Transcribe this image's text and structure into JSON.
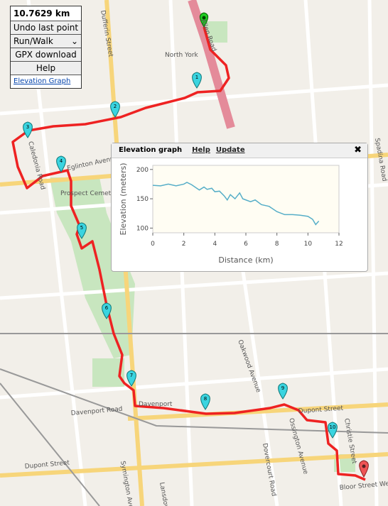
{
  "panel": {
    "distance": "10.7629 km",
    "undo": "Undo last point",
    "mode": "Run/Walk",
    "gpx": "GPX download",
    "help": "Help",
    "elevation_link": "Elevation Graph"
  },
  "streets": [
    "North York",
    "Allen Road",
    "Dufferin Street",
    "Caledonia Road",
    "Eglinton Avenue West",
    "Prospect Cemetery",
    "Oakwood Avenue",
    "Davenport",
    "Davenport Road",
    "Dupont Street",
    "Ossington Avenue",
    "Dovercourt Road",
    "Christie Street",
    "Bloor Street West",
    "Symington Avenue",
    "Lansdowne",
    "Spadina Road",
    "Dupont Street"
  ],
  "markers": [
    "1",
    "2",
    "3",
    "4",
    "5",
    "6",
    "7",
    "8",
    "9",
    "10"
  ],
  "popup": {
    "title": "Elevation graph",
    "help": "Help",
    "update": "Update",
    "close": "✖"
  },
  "chart_data": {
    "type": "line",
    "x_label": "Distance (km)",
    "y_label": "Elevation (meters)",
    "color": "#56aec8",
    "x": [
      0,
      0.5,
      1,
      1.5,
      2,
      2.2,
      2.5,
      3,
      3.3,
      3.5,
      3.8,
      4,
      4.3,
      4.6,
      4.8,
      5,
      5.3,
      5.6,
      5.8,
      6,
      6.3,
      6.6,
      7,
      7.5,
      8,
      8.5,
      9,
      9.5,
      10,
      10.3,
      10.5,
      10.7
    ],
    "values": [
      173,
      172,
      175,
      172,
      175,
      178,
      174,
      165,
      170,
      166,
      168,
      162,
      163,
      155,
      148,
      157,
      150,
      160,
      150,
      148,
      145,
      148,
      140,
      137,
      128,
      123,
      123,
      122,
      120,
      115,
      106,
      112
    ],
    "xlim": [
      0,
      12
    ],
    "ylim": [
      92,
      207
    ],
    "xticks": [
      0,
      2,
      4,
      6,
      8,
      10,
      12
    ],
    "yticks": [
      100,
      150,
      200
    ]
  }
}
